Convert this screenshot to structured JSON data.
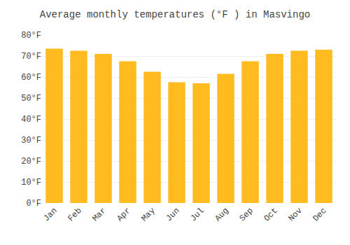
{
  "chart_data": {
    "type": "bar",
    "title": "Average monthly temperatures (°F ) in Masvingo",
    "categories": [
      "Jan",
      "Feb",
      "Mar",
      "Apr",
      "May",
      "Jun",
      "Jul",
      "Aug",
      "Sep",
      "Oct",
      "Nov",
      "Dec"
    ],
    "values": [
      73.5,
      72.5,
      71.0,
      67.5,
      62.5,
      57.5,
      57.0,
      61.5,
      67.5,
      71.0,
      72.5,
      73.0
    ],
    "color": "#FFBB20",
    "ylim": [
      0,
      80
    ],
    "yticks": [
      {
        "value": 0,
        "label": "0°F"
      },
      {
        "value": 10,
        "label": "10°F"
      },
      {
        "value": 20,
        "label": "20°F"
      },
      {
        "value": 30,
        "label": "30°F"
      },
      {
        "value": 40,
        "label": "40°F"
      },
      {
        "value": 50,
        "label": "50°F"
      },
      {
        "value": 60,
        "label": "60°F"
      },
      {
        "value": 70,
        "label": "70°F"
      },
      {
        "value": 80,
        "label": "80°F"
      }
    ],
    "grid": true
  }
}
